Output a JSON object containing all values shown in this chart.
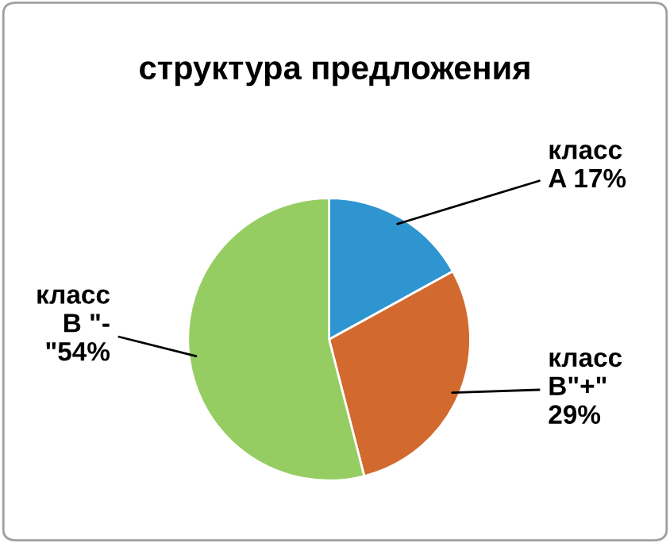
{
  "chart_data": {
    "type": "pie",
    "title": "структура предложения",
    "categories": [
      null,
      null,
      null
    ],
    "values": [
      17,
      29,
      54
    ],
    "colors": [
      "#2e95d0",
      "#d2692e",
      "#96cd62"
    ],
    "value_labels": [
      "класс\nA 17%",
      "класс\nB\"+\"\n29%",
      "класс\nB \"-\n\"54%"
    ],
    "legend": false
  }
}
